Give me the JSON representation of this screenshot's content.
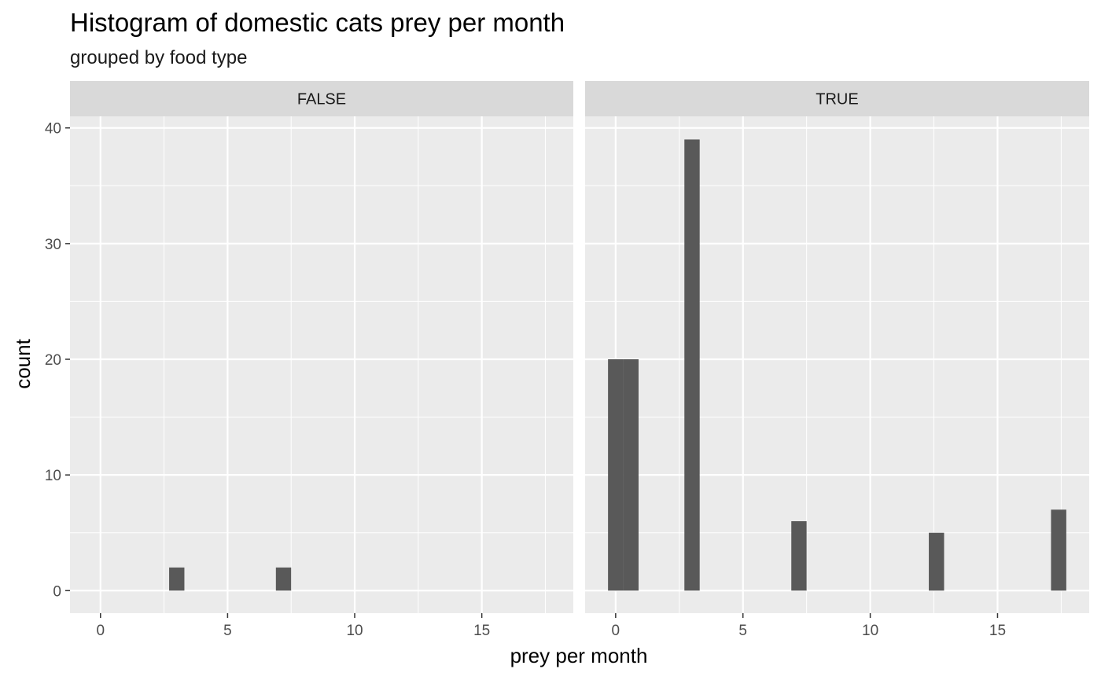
{
  "chart_data": {
    "type": "bar",
    "title": "Histogram of domestic cats prey per month",
    "subtitle": "grouped by food type",
    "xlabel": "prey per month",
    "ylabel": "count",
    "xlim": [
      -1.2,
      18.6
    ],
    "ylim": [
      -1.95,
      41
    ],
    "x_ticks": [
      0,
      5,
      10,
      15
    ],
    "y_ticks": [
      0,
      10,
      20,
      30,
      40
    ],
    "bin_width": 0.6,
    "grid": true,
    "colors": {
      "panel_bg": "#ebebeb",
      "strip_bg": "#d9d9d9",
      "grid": "#ffffff",
      "bar": "#595959"
    },
    "panels": [
      {
        "label": "FALSE",
        "bars": [
          {
            "x": 3,
            "count": 2
          },
          {
            "x": 7.2,
            "count": 2
          }
        ]
      },
      {
        "label": "TRUE",
        "bars": [
          {
            "x": 0,
            "count": 20
          },
          {
            "x": 0.6,
            "count": 20
          },
          {
            "x": 3,
            "count": 39
          },
          {
            "x": 7.2,
            "count": 6
          },
          {
            "x": 12.6,
            "count": 5
          },
          {
            "x": 17.4,
            "count": 7
          }
        ]
      }
    ]
  }
}
